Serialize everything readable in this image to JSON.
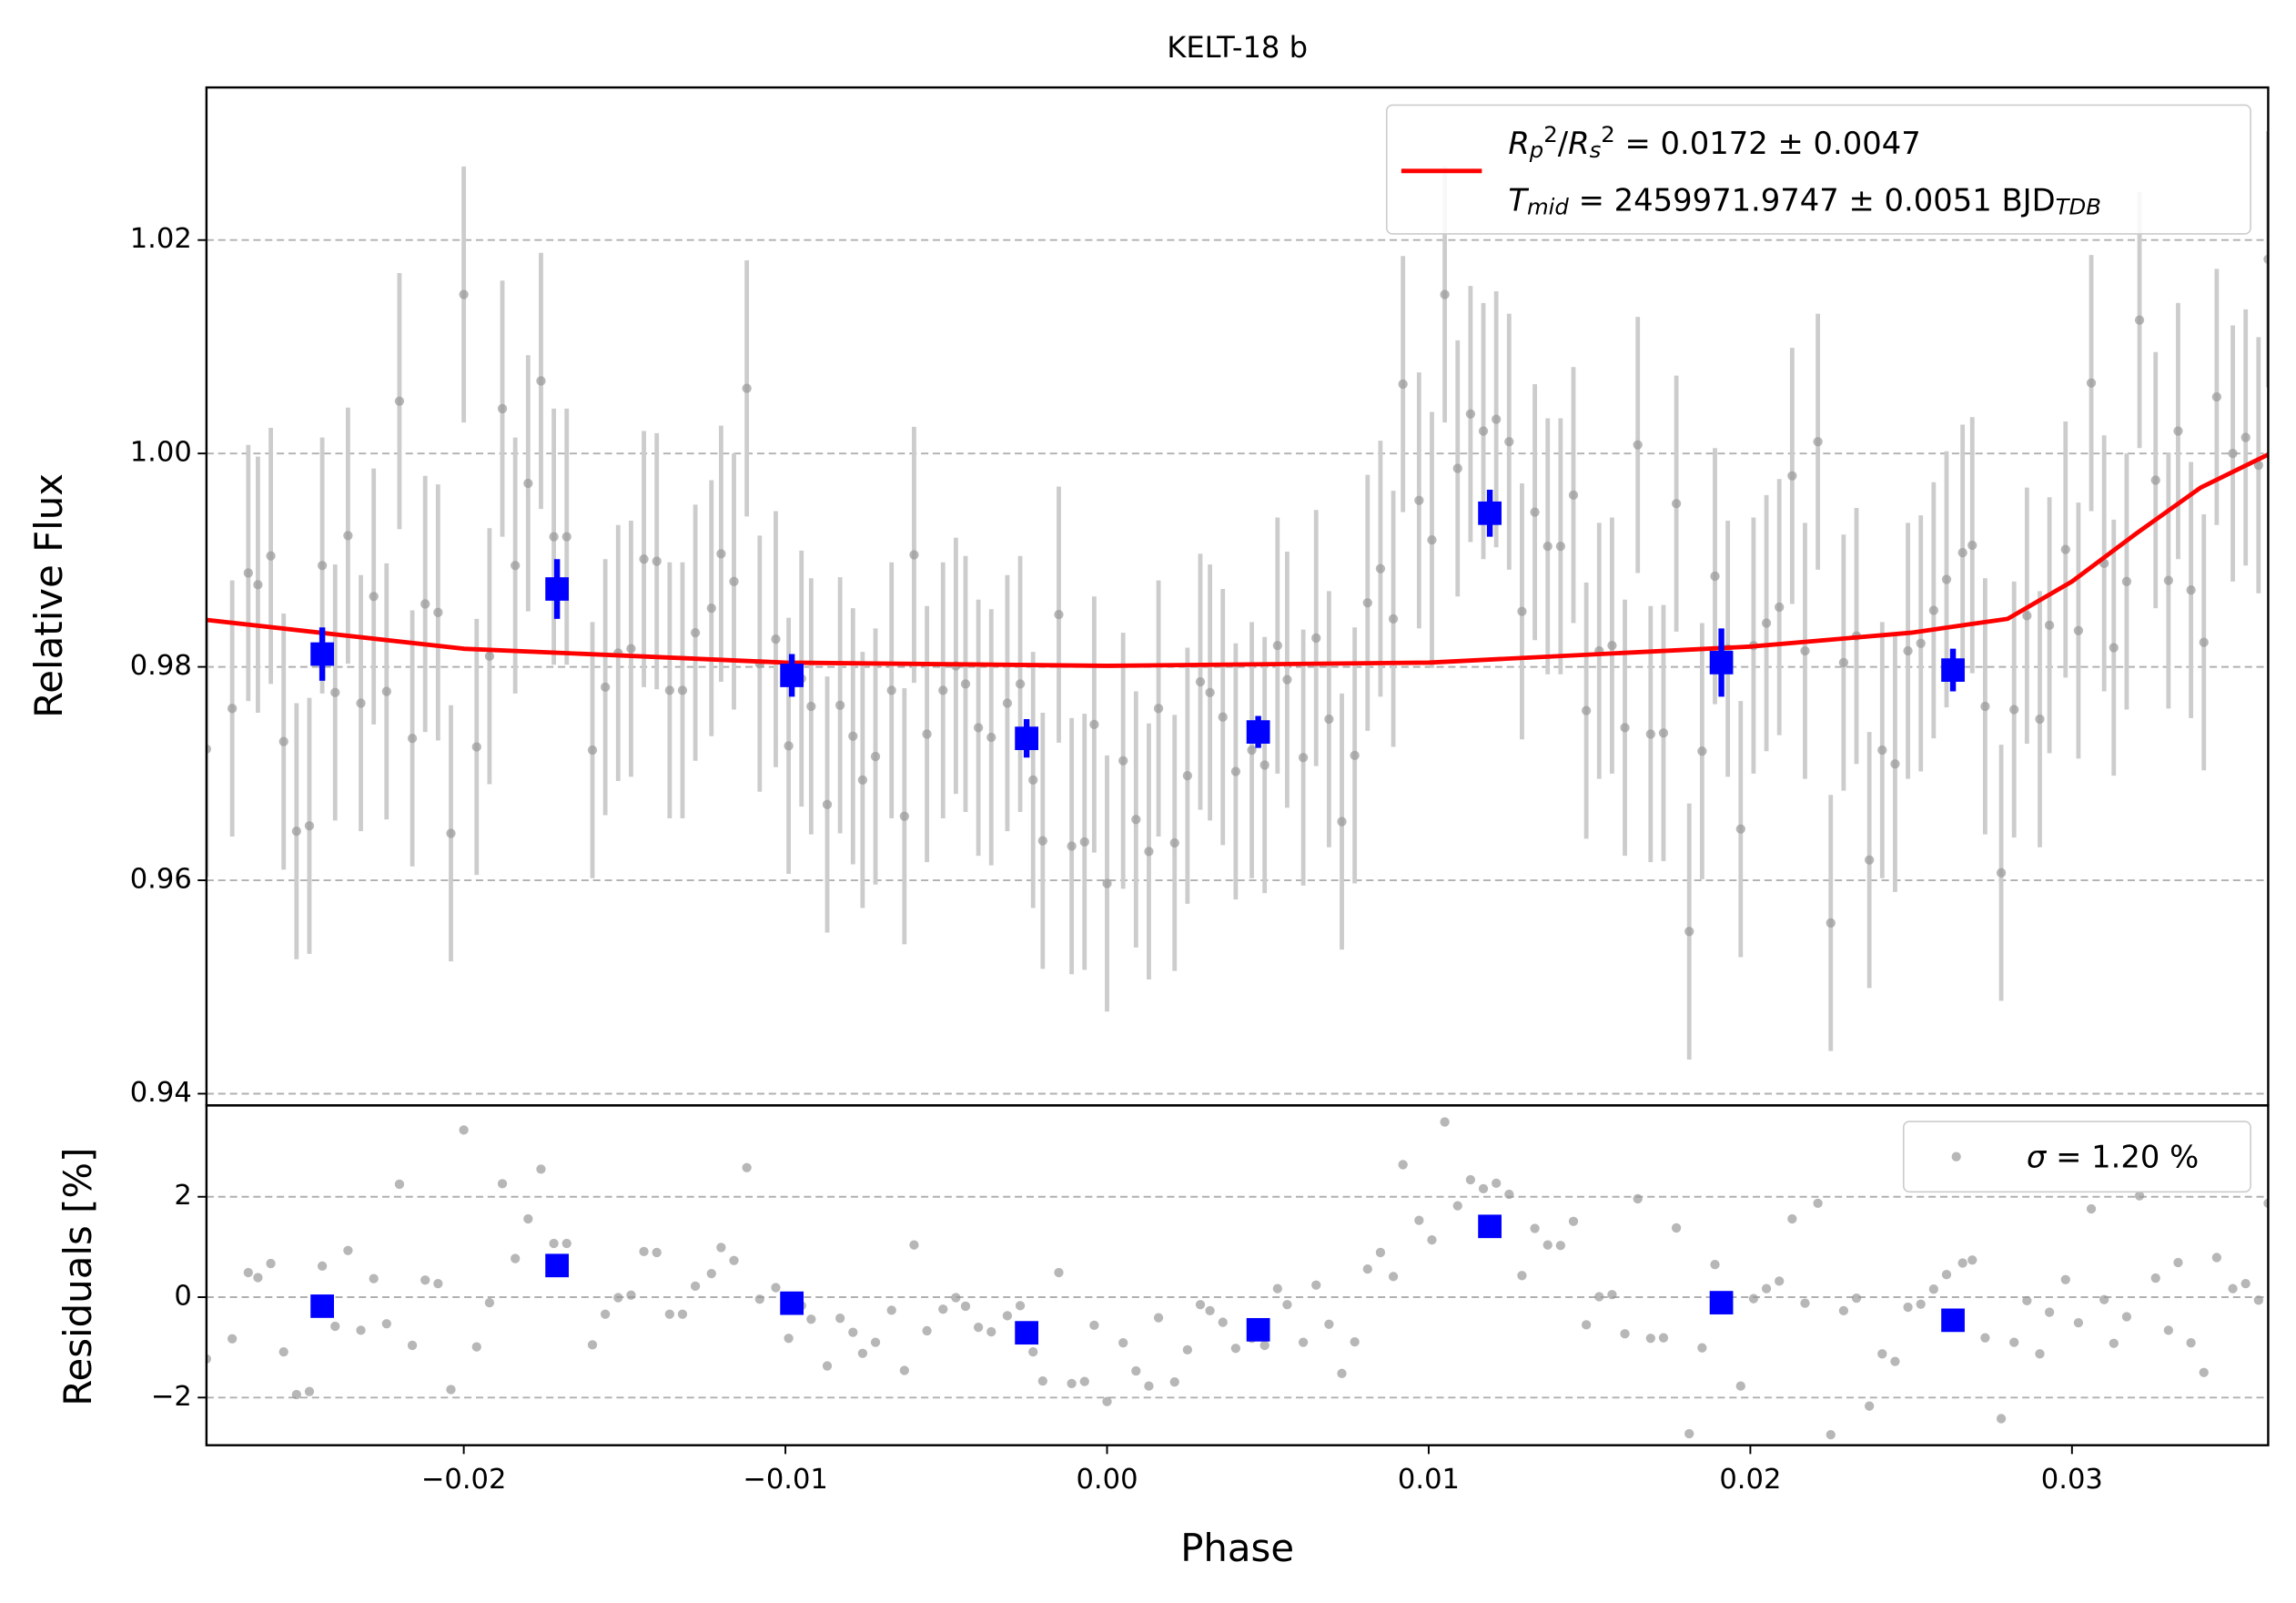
{
  "chart_data": [
    {
      "type": "errorbar",
      "title": "KELT-18 b",
      "ylabel": "Relative Flux",
      "xlim": [
        -0.028,
        0.0361
      ],
      "ylim": [
        0.9389,
        1.0343
      ],
      "yticks": [
        0.94,
        0.96,
        0.98,
        {
          "value": 1,
          "label": "1.00"
        },
        1.02
      ],
      "grid": true,
      "points": {
        "color": "#999999",
        "errorcolor": "#cccccc",
        "error": 0.012,
        "x": [
          -0.028,
          -0.0272,
          -0.0267,
          -0.0264,
          -0.026,
          -0.0256,
          -0.0252,
          -0.0248,
          -0.0244,
          -0.024,
          -0.0236,
          -0.0232,
          -0.0228,
          -0.0224,
          -0.022,
          -0.0216,
          -0.0212,
          -0.0208,
          -0.0204,
          -0.02,
          -0.0196,
          -0.0192,
          -0.0188,
          -0.0184,
          -0.018,
          -0.0176,
          -0.0172,
          -0.0168,
          -0.016,
          -0.0156,
          -0.0152,
          -0.0148,
          -0.0144,
          -0.014,
          -0.0136,
          -0.0132,
          -0.0128,
          -0.0123,
          -0.012,
          -0.0116,
          -0.0112,
          -0.0108,
          -0.0103,
          -0.0099,
          -0.0095,
          -0.0092,
          -0.0087,
          -0.0083,
          -0.0079,
          -0.0076,
          -0.0072,
          -0.0067,
          -0.0063,
          -0.006,
          -0.0056,
          -0.0051,
          -0.0047,
          -0.0044,
          -0.004,
          -0.0036,
          -0.0031,
          -0.0027,
          -0.0023,
          -0.002,
          -0.0015,
          -0.0011,
          -0.0007,
          -0.0004,
          0.0,
          0.0005,
          0.0009,
          0.0013,
          0.0016,
          0.0021,
          0.0025,
          0.0029,
          0.0032,
          0.0036,
          0.004,
          0.0045,
          0.0049,
          0.0053,
          0.0056,
          0.0061,
          0.0065,
          0.0069,
          0.0073,
          0.0077,
          0.0081,
          0.0085,
          0.0089,
          0.0092,
          0.0097,
          0.0101,
          0.0105,
          0.0109,
          0.0113,
          0.0117,
          0.0121,
          0.0125,
          0.0129,
          0.0133,
          0.0137,
          0.0141,
          0.0145,
          0.0149,
          0.0153,
          0.0157,
          0.0161,
          0.0165,
          0.0169,
          0.0173,
          0.0177,
          0.0181,
          0.0185,
          0.0189,
          0.0193,
          0.0197,
          0.0201,
          0.0205,
          0.0209,
          0.0213,
          0.0217,
          0.0221,
          0.0225,
          0.0229,
          0.0233,
          0.0237,
          0.0241,
          0.0245,
          0.0249,
          0.0253,
          0.0257,
          0.0261,
          0.0266,
          0.0269,
          0.0273,
          0.0278,
          0.0282,
          0.0286,
          0.029,
          0.0293,
          0.0298,
          0.0302,
          0.0306,
          0.031,
          0.0313,
          0.0317,
          0.0321,
          0.0326,
          0.033,
          0.0333,
          0.0337,
          0.0341,
          0.0345,
          0.035,
          0.0354,
          0.0358,
          0.0361
        ],
        "values": [
          0.9723,
          0.9761,
          0.9888,
          0.9877,
          0.9904,
          0.973,
          0.9646,
          0.9651,
          0.9895,
          0.9776,
          0.9923,
          0.9766,
          0.9866,
          0.9777,
          1.0049,
          0.9733,
          0.9859,
          0.9851,
          0.9644,
          1.0149,
          0.9725,
          0.981,
          1.0042,
          0.9895,
          0.9972,
          1.0068,
          0.9922,
          0.9922,
          0.9722,
          0.9781,
          0.9813,
          0.9817,
          0.9901,
          0.9899,
          0.9778,
          0.9778,
          0.9832,
          0.9855,
          0.9906,
          0.988,
          1.0061,
          0.9803,
          0.9826,
          0.9726,
          0.9789,
          0.9763,
          0.9671,
          0.9764,
          0.9735,
          0.9694,
          0.9716,
          0.9778,
          0.966,
          0.9905,
          0.9737,
          0.9778,
          0.9801,
          0.9784,
          0.9743,
          0.9734,
          0.9766,
          0.9784,
          0.9694,
          0.9637,
          0.9849,
          0.9632,
          0.9636,
          0.9746,
          0.9597,
          0.9712,
          0.9657,
          0.9627,
          0.9761,
          0.9635,
          0.9698,
          0.9786,
          0.9776,
          0.9753,
          0.9702,
          0.9722,
          0.9708,
          0.982,
          0.9788,
          0.9715,
          0.9827,
          0.9751,
          0.9655,
          0.9717,
          0.986,
          0.9892,
          0.9845,
          1.0065,
          0.9956,
          0.9919,
          1.0149,
          0.9986,
          1.0037,
          1.0021,
          1.0032,
          1.0011,
          0.9852,
          0.9945,
          0.9913,
          0.9913,
          0.9961,
          0.9759,
          0.9815,
          0.982,
          0.9743,
          1.0008,
          0.9737,
          0.9738,
          0.9953,
          0.9552,
          0.9721,
          0.9885,
          0.9817,
          0.9648,
          0.982,
          0.9841,
          0.9856,
          0.9979,
          0.9815,
          1.0011,
          0.956,
          0.9804,
          0.9829,
          0.9619,
          0.9722,
          0.9709,
          0.9815,
          0.9822,
          0.9853,
          0.9882,
          0.9907,
          0.9914,
          0.9763,
          0.9607,
          0.976,
          0.9848,
          0.9751,
          0.9839,
          0.991,
          0.9834,
          1.0066,
          0.9897,
          0.9818,
          0.988,
          1.0125,
          0.9975,
          0.9881,
          1.0021,
          0.9872,
          0.9823,
          1.0053,
          1.0,
          1.0015,
          0.9989,
          1.0182
        ]
      },
      "binned": {
        "color": "#0000ff",
        "x": [
          -0.0244,
          -0.0171,
          -0.0098,
          -0.0025,
          0.0047,
          0.0119,
          0.0191,
          0.0263
        ],
        "values": [
          0.9812,
          0.9873,
          0.9792,
          0.9733,
          0.9739,
          0.9944,
          0.9804,
          0.9797
        ],
        "errors": [
          0.0025,
          0.0028,
          0.002,
          0.0018,
          0.0015,
          0.0022,
          0.0032,
          0.002
        ]
      },
      "model": {
        "color": "#ff0000",
        "x": [
          -0.028,
          -0.02,
          -0.01,
          0.0,
          0.01,
          0.02,
          0.025,
          0.028,
          0.03,
          0.032,
          0.034,
          0.0361
        ],
        "values": [
          0.9844,
          0.9817,
          0.9804,
          0.9801,
          0.9804,
          0.9819,
          0.9832,
          0.9845,
          0.988,
          0.9925,
          0.9968,
          0.9999
        ],
        "label": [
          [
            {
              "text": "R",
              "style": "italic"
            },
            {
              "text": "p",
              "style": "italic",
              "shift": "sub"
            },
            {
              "text": "2",
              "shift": "sup"
            },
            {
              "text": "/"
            },
            {
              "text": "R",
              "style": "italic"
            },
            {
              "text": "s",
              "style": "italic",
              "shift": "sub"
            },
            {
              "text": "2",
              "shift": "sup"
            },
            {
              "text": " = 0.0172 ± 0.0047"
            }
          ],
          [
            {
              "text": "T",
              "style": "italic"
            },
            {
              "text": "mid",
              "style": "italic",
              "shift": "sub"
            },
            {
              "text": " = 2459971.9747 ± 0.0051 BJD"
            },
            {
              "text": "TDB",
              "style": "italic",
              "shift": "sub"
            }
          ]
        ]
      }
    },
    {
      "type": "scatter",
      "xlabel": "Phase",
      "ylabel": "Residuals [%]",
      "xlim": [
        -0.028,
        0.0361
      ],
      "ylim": [
        -2.95,
        3.82
      ],
      "xticks": [
        {
          "value": -0.02,
          "label": "−0.02"
        },
        {
          "value": -0.01,
          "label": "−0.01"
        },
        {
          "value": 0,
          "label": "0.00"
        },
        0.01,
        0.02,
        0.03
      ],
      "yticks": [
        {
          "value": -2,
          "label": "−2"
        },
        0,
        2
      ],
      "grid": true,
      "points": {
        "color": "#999999",
        "x": [
          -0.028,
          -0.0272,
          -0.0267,
          -0.0264,
          -0.026,
          -0.0256,
          -0.0252,
          -0.0248,
          -0.0244,
          -0.024,
          -0.0236,
          -0.0232,
          -0.0228,
          -0.0224,
          -0.022,
          -0.0216,
          -0.0212,
          -0.0208,
          -0.0204,
          -0.02,
          -0.0196,
          -0.0192,
          -0.0188,
          -0.0184,
          -0.018,
          -0.0176,
          -0.0172,
          -0.0168,
          -0.016,
          -0.0156,
          -0.0152,
          -0.0148,
          -0.0144,
          -0.014,
          -0.0136,
          -0.0132,
          -0.0128,
          -0.0123,
          -0.012,
          -0.0116,
          -0.0112,
          -0.0108,
          -0.0103,
          -0.0099,
          -0.0095,
          -0.0092,
          -0.0087,
          -0.0083,
          -0.0079,
          -0.0076,
          -0.0072,
          -0.0067,
          -0.0063,
          -0.006,
          -0.0056,
          -0.0051,
          -0.0047,
          -0.0044,
          -0.004,
          -0.0036,
          -0.0031,
          -0.0027,
          -0.0023,
          -0.002,
          -0.0015,
          -0.0011,
          -0.0007,
          -0.0004,
          0.0,
          0.0005,
          0.0009,
          0.0013,
          0.0016,
          0.0021,
          0.0025,
          0.0029,
          0.0032,
          0.0036,
          0.004,
          0.0045,
          0.0049,
          0.0053,
          0.0056,
          0.0061,
          0.0065,
          0.0069,
          0.0073,
          0.0077,
          0.0081,
          0.0085,
          0.0089,
          0.0092,
          0.0097,
          0.0101,
          0.0105,
          0.0109,
          0.0113,
          0.0117,
          0.0121,
          0.0125,
          0.0129,
          0.0133,
          0.0137,
          0.0141,
          0.0145,
          0.0149,
          0.0153,
          0.0157,
          0.0161,
          0.0165,
          0.0169,
          0.0173,
          0.0177,
          0.0181,
          0.0185,
          0.0189,
          0.0193,
          0.0197,
          0.0201,
          0.0205,
          0.0209,
          0.0213,
          0.0217,
          0.0221,
          0.0225,
          0.0229,
          0.0233,
          0.0237,
          0.0241,
          0.0245,
          0.0249,
          0.0253,
          0.0257,
          0.0261,
          0.0266,
          0.0269,
          0.0273,
          0.0278,
          0.0282,
          0.0286,
          0.029,
          0.0293,
          0.0298,
          0.0302,
          0.0306,
          0.031,
          0.0313,
          0.0317,
          0.0321,
          0.0326,
          0.033,
          0.0333,
          0.0337,
          0.0341,
          0.0345,
          0.035,
          0.0354,
          0.0358,
          0.0361
        ],
        "values": [
          -1.23,
          -0.83,
          0.49,
          0.39,
          0.67,
          -1.09,
          -1.94,
          -1.88,
          0.62,
          -0.58,
          0.93,
          -0.66,
          0.37,
          -0.53,
          2.25,
          -0.96,
          0.34,
          0.27,
          -1.84,
          3.33,
          -0.99,
          -0.11,
          2.26,
          0.77,
          1.56,
          2.55,
          1.07,
          1.07,
          -0.95,
          -0.34,
          -0.01,
          0.04,
          0.91,
          0.89,
          -0.34,
          -0.34,
          0.22,
          0.47,
          0.99,
          0.73,
          2.58,
          -0.04,
          0.19,
          -0.82,
          -0.17,
          -0.44,
          -1.37,
          -0.42,
          -0.7,
          -1.12,
          -0.9,
          -0.26,
          -1.46,
          1.04,
          -0.67,
          -0.24,
          -0.01,
          -0.18,
          -0.6,
          -0.69,
          -0.37,
          -0.17,
          -1.09,
          -1.67,
          0.49,
          -1.72,
          -1.68,
          -0.56,
          -2.08,
          -0.91,
          -1.47,
          -1.77,
          -0.41,
          -1.69,
          -1.05,
          -0.15,
          -0.27,
          -0.5,
          -1.02,
          -0.82,
          -0.96,
          0.17,
          -0.15,
          -0.9,
          0.24,
          -0.54,
          -1.52,
          -0.89,
          0.56,
          0.89,
          0.41,
          2.64,
          1.53,
          1.14,
          3.49,
          1.82,
          2.34,
          2.16,
          2.27,
          2.05,
          0.43,
          1.37,
          1.04,
          1.03,
          1.51,
          -0.55,
          0.01,
          0.05,
          -0.73,
          1.96,
          -0.82,
          -0.81,
          1.38,
          -2.72,
          -1.01,
          0.65,
          -0.04,
          -1.77,
          -0.03,
          0.17,
          0.32,
          1.56,
          -0.12,
          1.87,
          -2.74,
          -0.27,
          -0.02,
          -2.17,
          -1.13,
          -1.28,
          -0.2,
          -0.14,
          0.16,
          0.45,
          0.68,
          0.74,
          -0.81,
          -2.42,
          -0.9,
          -0.07,
          -1.13,
          -0.3,
          0.35,
          -0.51,
          1.76,
          -0.05,
          -0.92,
          -0.39,
          2.02,
          0.38,
          -0.66,
          0.69,
          -0.91,
          -1.5,
          0.79,
          0.17,
          0.27,
          -0.06,
          1.87
        ],
        "label": [
          [
            {
              "text": "σ",
              "style": "italic"
            },
            {
              "text": " = 1.20 %"
            }
          ]
        ]
      },
      "binned": {
        "color": "#0000ff",
        "x": [
          -0.0244,
          -0.0171,
          -0.0098,
          -0.0025,
          0.0047,
          0.0119,
          0.0191,
          0.0263
        ],
        "values": [
          -0.18,
          0.63,
          -0.12,
          -0.71,
          -0.65,
          1.41,
          -0.11,
          -0.46
        ]
      }
    }
  ]
}
